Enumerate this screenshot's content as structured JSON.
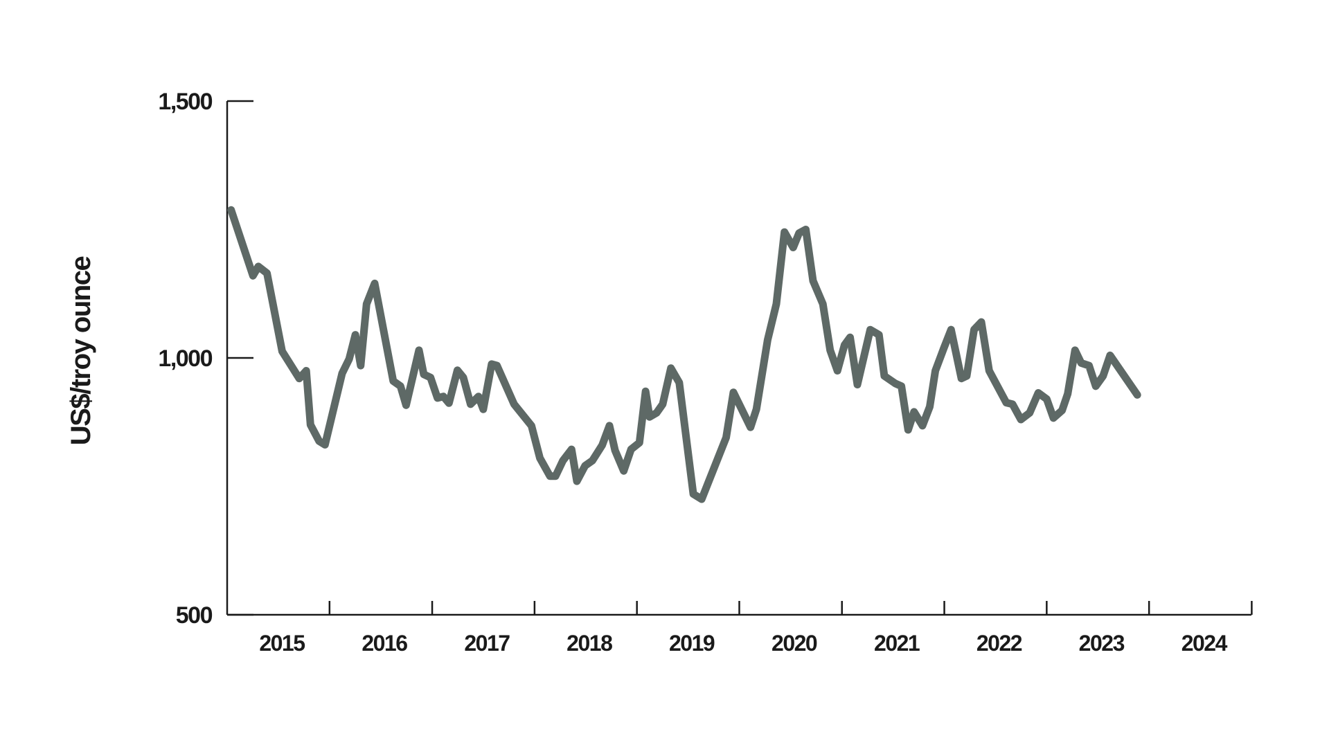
{
  "chart_data": {
    "type": "line",
    "title": "",
    "xlabel": "",
    "ylabel": "US$/troy ounce",
    "ylim": [
      500,
      1500
    ],
    "xlim": [
      "2014-10-01",
      "2024-09-30"
    ],
    "y_ticks": [
      {
        "value": 500,
        "label": "500"
      },
      {
        "value": 1000,
        "label": "1,000"
      },
      {
        "value": 1500,
        "label": "1,500"
      }
    ],
    "x_tick_labels": [
      "2015",
      "2016",
      "2017",
      "2018",
      "2019",
      "2020",
      "2021",
      "2022",
      "2023",
      "2024"
    ],
    "grid": false,
    "legend": "none",
    "series": [
      {
        "color": "#5e6966",
        "points": [
          [
            "2014-10-15",
            1288
          ],
          [
            "2015-01-01",
            1160
          ],
          [
            "2015-01-20",
            1178
          ],
          [
            "2015-02-20",
            1165
          ],
          [
            "2015-04-15",
            1013
          ],
          [
            "2015-06-15",
            960
          ],
          [
            "2015-07-10",
            975
          ],
          [
            "2015-07-25",
            870
          ],
          [
            "2015-08-25",
            838
          ],
          [
            "2015-09-15",
            831
          ],
          [
            "2015-11-15",
            970
          ],
          [
            "2015-12-10",
            998
          ],
          [
            "2016-01-01",
            1045
          ],
          [
            "2016-01-20",
            985
          ],
          [
            "2016-02-10",
            1105
          ],
          [
            "2016-03-10",
            1145
          ],
          [
            "2016-05-15",
            955
          ],
          [
            "2016-06-10",
            945
          ],
          [
            "2016-06-30",
            908
          ],
          [
            "2016-08-15",
            1015
          ],
          [
            "2016-09-01",
            968
          ],
          [
            "2016-09-25",
            962
          ],
          [
            "2016-10-20",
            922
          ],
          [
            "2016-11-10",
            925
          ],
          [
            "2016-11-30",
            912
          ],
          [
            "2016-12-30",
            976
          ],
          [
            "2017-01-20",
            962
          ],
          [
            "2017-02-15",
            910
          ],
          [
            "2017-03-15",
            925
          ],
          [
            "2017-04-01",
            900
          ],
          [
            "2017-05-01",
            988
          ],
          [
            "2017-05-20",
            985
          ],
          [
            "2017-07-20",
            910
          ],
          [
            "2017-09-20",
            868
          ],
          [
            "2017-10-20",
            805
          ],
          [
            "2017-11-25",
            770
          ],
          [
            "2017-12-15",
            770
          ],
          [
            "2018-01-10",
            800
          ],
          [
            "2018-02-10",
            822
          ],
          [
            "2018-03-01",
            760
          ],
          [
            "2018-03-30",
            790
          ],
          [
            "2018-04-25",
            800
          ],
          [
            "2018-05-30",
            830
          ],
          [
            "2018-06-25",
            868
          ],
          [
            "2018-07-15",
            820
          ],
          [
            "2018-08-15",
            780
          ],
          [
            "2018-09-10",
            822
          ],
          [
            "2018-10-10",
            835
          ],
          [
            "2018-11-01",
            935
          ],
          [
            "2018-11-15",
            885
          ],
          [
            "2018-12-10",
            893
          ],
          [
            "2019-01-01",
            910
          ],
          [
            "2019-01-30",
            980
          ],
          [
            "2019-03-01",
            952
          ],
          [
            "2019-04-20",
            735
          ],
          [
            "2019-05-20",
            725
          ],
          [
            "2019-08-15",
            845
          ],
          [
            "2019-09-10",
            933
          ],
          [
            "2019-11-10",
            865
          ],
          [
            "2019-12-01",
            900
          ],
          [
            "2020-01-10",
            1035
          ],
          [
            "2020-02-10",
            1105
          ],
          [
            "2020-03-10",
            1245
          ],
          [
            "2020-04-10",
            1215
          ],
          [
            "2020-05-01",
            1243
          ],
          [
            "2020-05-25",
            1250
          ],
          [
            "2020-06-20",
            1150
          ],
          [
            "2020-07-25",
            1105
          ],
          [
            "2020-08-20",
            1015
          ],
          [
            "2020-09-15",
            975
          ],
          [
            "2020-10-10",
            1025
          ],
          [
            "2020-10-30",
            1040
          ],
          [
            "2020-11-25",
            948
          ],
          [
            "2021-01-10",
            1055
          ],
          [
            "2021-02-10",
            1045
          ],
          [
            "2021-03-01",
            965
          ],
          [
            "2021-04-10",
            950
          ],
          [
            "2021-05-01",
            945
          ],
          [
            "2021-05-25",
            860
          ],
          [
            "2021-06-15",
            895
          ],
          [
            "2021-07-15",
            868
          ],
          [
            "2021-08-10",
            905
          ],
          [
            "2021-08-30",
            975
          ],
          [
            "2021-09-30",
            1020
          ],
          [
            "2021-10-25",
            1055
          ],
          [
            "2021-12-01",
            960
          ],
          [
            "2021-12-20",
            965
          ],
          [
            "2022-01-15",
            1055
          ],
          [
            "2022-02-10",
            1070
          ],
          [
            "2022-03-10",
            975
          ],
          [
            "2022-05-10",
            913
          ],
          [
            "2022-06-01",
            910
          ],
          [
            "2022-07-01",
            880
          ],
          [
            "2022-08-01",
            893
          ],
          [
            "2022-09-01",
            932
          ],
          [
            "2022-10-01",
            920
          ],
          [
            "2022-10-25",
            883
          ],
          [
            "2022-11-25",
            898
          ],
          [
            "2022-12-15",
            930
          ],
          [
            "2023-01-10",
            1015
          ],
          [
            "2023-02-01",
            990
          ],
          [
            "2023-03-01",
            985
          ],
          [
            "2023-03-25",
            945
          ],
          [
            "2023-04-20",
            965
          ],
          [
            "2023-05-15",
            1005
          ],
          [
            "2023-08-20",
            928
          ]
        ]
      }
    ]
  }
}
